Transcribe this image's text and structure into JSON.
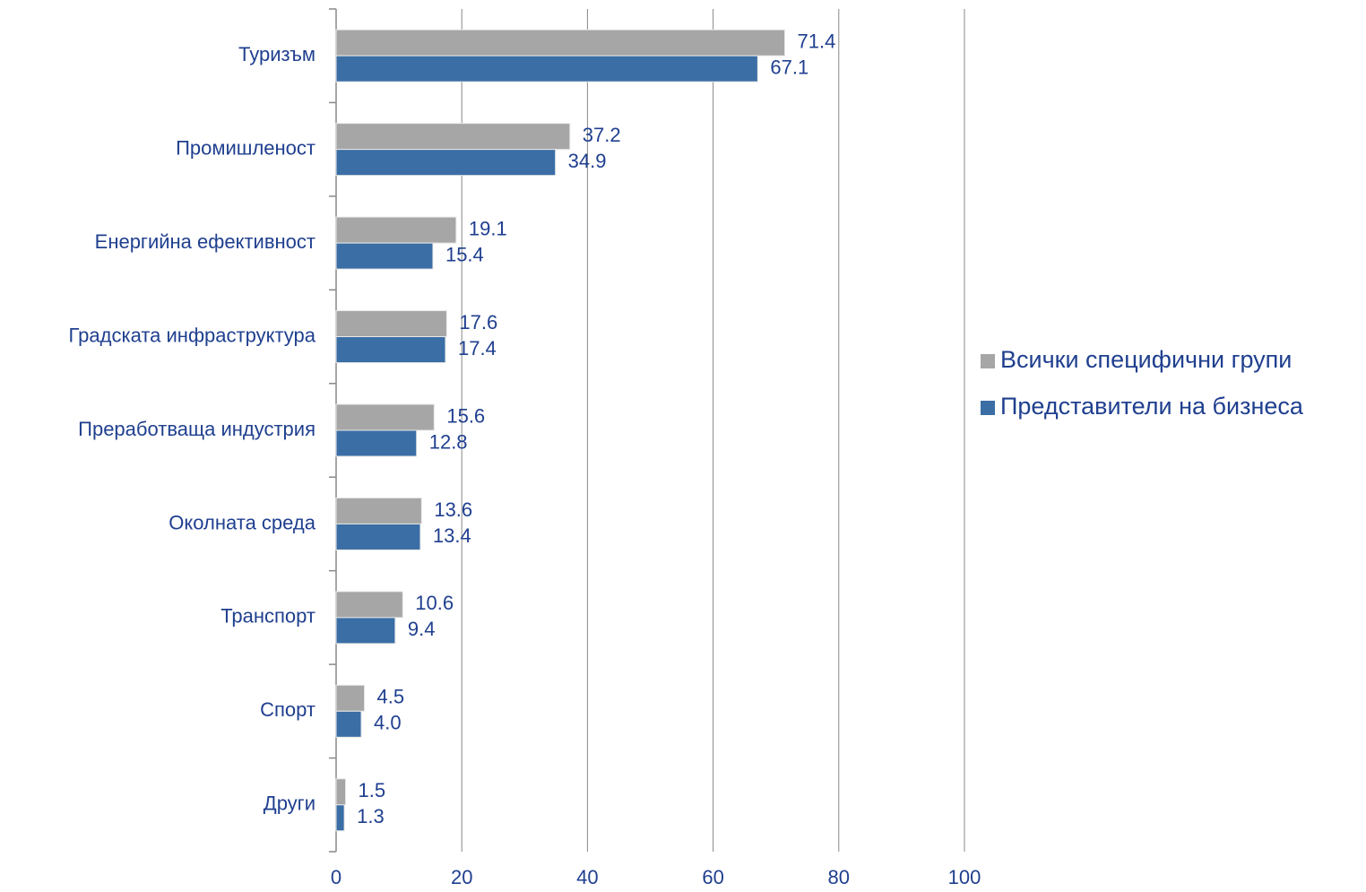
{
  "chart_data": {
    "type": "bar",
    "orientation": "horizontal",
    "categories": [
      "Туризъм",
      "Промишленост",
      "Енергийна ефективност",
      "Градската инфраструктура",
      "Преработваща индустрия",
      "Околната среда",
      "Транспорт",
      "Спорт",
      "Други"
    ],
    "series": [
      {
        "name": "Всички специфични групи",
        "color": "#a6a6a6",
        "values": [
          71.4,
          37.2,
          19.1,
          17.6,
          15.6,
          13.6,
          10.6,
          4.5,
          1.5
        ],
        "value_labels": [
          "71.4",
          "37.2",
          "19.1",
          "17.6",
          "15.6",
          "13.6",
          "10.6",
          "4.5",
          "1.5"
        ]
      },
      {
        "name": "Представители на бизнеса",
        "color": "#3a6ea5",
        "values": [
          67.1,
          34.9,
          15.4,
          17.4,
          12.8,
          13.4,
          9.4,
          4.0,
          1.3
        ],
        "value_labels": [
          "67.1",
          "34.9",
          "15.4",
          "17.4",
          "12.8",
          "13.4",
          "9.4",
          "4.0",
          "1.3"
        ]
      }
    ],
    "xlim": [
      0,
      100
    ],
    "xticks": [
      0,
      20,
      40,
      60,
      80,
      100
    ],
    "grid": true,
    "legend": "right"
  }
}
